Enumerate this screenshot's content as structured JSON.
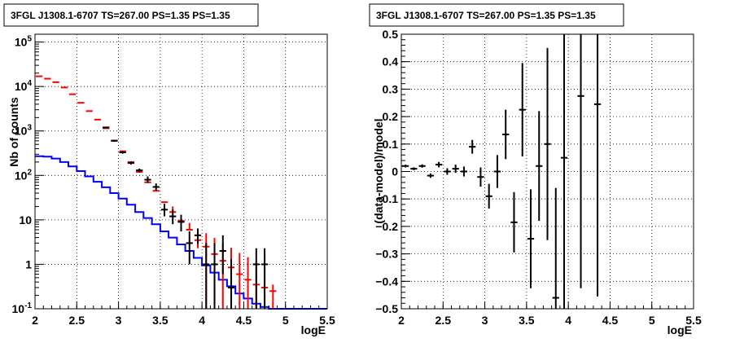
{
  "chart_data": [
    {
      "type": "line",
      "title": "3FGL J1308.1-6707 TS=267.00 PS=1.35 PS=1.35",
      "xlabel": "logE",
      "ylabel": "Nb of counts",
      "xlim": [
        2,
        5.5
      ],
      "ylim": [
        0.1,
        150000
      ],
      "yscale": "log",
      "grid": true,
      "x_ticks": [
        "2",
        "2.5",
        "3",
        "3.5",
        "4",
        "4.5",
        "5",
        "5.5"
      ],
      "y_ticks": [
        "10^-1",
        "1",
        "10",
        "10^2",
        "10^3",
        "10^4",
        "10^5"
      ],
      "series": [
        {
          "kind": "step",
          "color": "#0000ff",
          "bins": [
            2.0,
            2.1,
            2.2,
            2.3,
            2.4,
            2.5,
            2.6,
            2.7,
            2.8,
            2.9,
            3.0,
            3.1,
            3.2,
            3.3,
            3.4,
            3.5,
            3.6,
            3.7,
            3.8,
            3.9,
            4.0,
            4.1,
            4.2,
            4.3,
            4.4,
            4.5,
            4.6,
            4.7,
            4.8,
            4.9,
            5.0,
            5.1,
            5.2,
            5.3,
            5.4,
            5.5
          ],
          "values": [
            270,
            265,
            240,
            200,
            160,
            125,
            95,
            72,
            54,
            40,
            30,
            22,
            15,
            11,
            8,
            5.5,
            4,
            2.8,
            2,
            1.4,
            0.95,
            0.65,
            0.45,
            0.32,
            0.22,
            0.17,
            0.13,
            0.11,
            0.1,
            0.1,
            0.1,
            0.1,
            0.1,
            0.1,
            0.1
          ]
        },
        {
          "kind": "model_points",
          "color": "#ff0000",
          "x": [
            2.05,
            2.15,
            2.25,
            2.35,
            2.45,
            2.55,
            2.65,
            2.75,
            2.85,
            2.95,
            3.05,
            3.15,
            3.25,
            3.35,
            3.45,
            3.55,
            3.65,
            3.75,
            3.85,
            3.95,
            4.05,
            4.15,
            4.25,
            4.35,
            4.45,
            4.55,
            4.65,
            4.75,
            4.85
          ],
          "y": [
            17000,
            15000,
            12500,
            9500,
            6700,
            4300,
            2800,
            1800,
            1150,
            610,
            350,
            200,
            120,
            70,
            45,
            25,
            15,
            9.5,
            6,
            3.5,
            2.5,
            1.7,
            1.2,
            0.85,
            0.6,
            0.45,
            0.35,
            0.3,
            0.25
          ],
          "err_low": [
            0,
            0,
            0,
            0,
            0,
            0,
            0,
            0,
            0,
            0,
            0,
            0,
            0,
            0,
            0,
            0,
            0,
            0,
            0,
            1.2,
            2.4,
            1.6,
            1.15,
            0.8,
            0.55,
            0.4,
            0.3,
            0.25,
            0.2
          ],
          "err_high": [
            0,
            0,
            0,
            0,
            0,
            0,
            0,
            0,
            0,
            0,
            0,
            0,
            0,
            0,
            0,
            0,
            5,
            3.5,
            2.5,
            2.5,
            2.5,
            2.2,
            1.8,
            1.5,
            1.2,
            1.0,
            0.8,
            0.6,
            0.1
          ]
        },
        {
          "kind": "data_points",
          "color": "#000000",
          "x": [
            2.85,
            2.95,
            3.05,
            3.15,
            3.25,
            3.35,
            3.45,
            3.55,
            3.65,
            3.75,
            3.85,
            3.95,
            4.05,
            4.15,
            4.25,
            4.35,
            4.45,
            4.55,
            4.65,
            4.75
          ],
          "y": [
            1200,
            600,
            330,
            190,
            130,
            80,
            55,
            17,
            12,
            9,
            3,
            4.5,
            1,
            1,
            2,
            0.3,
            0.1,
            0.1,
            1,
            1
          ],
          "err_low": [
            40,
            30,
            22,
            15,
            13,
            12,
            9,
            5,
            4,
            3.5,
            2,
            1.6,
            0.9,
            0.9,
            1.4,
            0.2,
            0,
            0,
            0.9,
            0.9
          ],
          "err_high": [
            40,
            30,
            22,
            15,
            13,
            15,
            11,
            6,
            5,
            4,
            2.5,
            1.9,
            2,
            2,
            2.5,
            1,
            0,
            0,
            1.3,
            1.3
          ]
        }
      ]
    },
    {
      "type": "scatter",
      "title": "3FGL J1308.1-6707 TS=267.00 PS=1.35 PS=1.35",
      "xlabel": "logE",
      "ylabel": "(data-model)/model",
      "xlim": [
        2,
        5.5
      ],
      "ylim": [
        -0.5,
        0.5
      ],
      "grid": true,
      "x_ticks": [
        "2",
        "2.5",
        "3",
        "3.5",
        "4",
        "4.5",
        "5",
        "5.5"
      ],
      "y_ticks": [
        "-0.5",
        "-0.4",
        "-0.3",
        "-0.2",
        "-0.1",
        "0",
        "0.1",
        "0.2",
        "0.3",
        "0.4",
        "0.5"
      ],
      "series": [
        {
          "color": "#000000",
          "x": [
            2.05,
            2.15,
            2.25,
            2.35,
            2.45,
            2.55,
            2.65,
            2.75,
            2.85,
            2.95,
            3.05,
            3.15,
            3.25,
            3.35,
            3.45,
            3.55,
            3.65,
            3.75,
            3.85,
            3.95,
            4.15,
            4.35
          ],
          "y": [
            0.02,
            0.01,
            0.02,
            -0.015,
            0.025,
            0.0,
            0.01,
            0.0,
            0.09,
            -0.02,
            -0.09,
            0.0,
            0.135,
            -0.185,
            0.225,
            -0.245,
            0.02,
            0.1,
            -0.46,
            0.05,
            0.275,
            0.245
          ],
          "err": [
            0.005,
            0.005,
            0.006,
            0.008,
            0.01,
            0.012,
            0.015,
            0.018,
            0.025,
            0.035,
            0.045,
            0.06,
            0.09,
            0.11,
            0.17,
            0.18,
            0.2,
            0.35,
            0.4,
            0.55,
            0.7,
            0.7
          ]
        }
      ]
    }
  ]
}
